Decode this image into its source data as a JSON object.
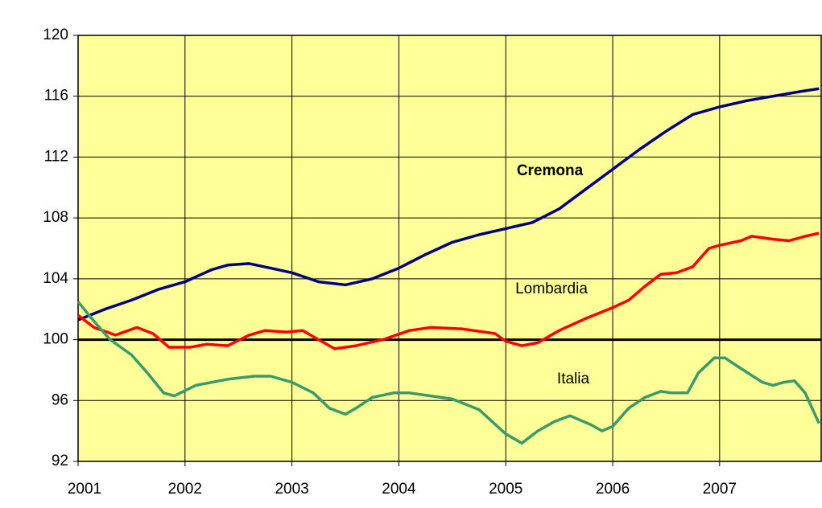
{
  "chart_data": {
    "type": "line",
    "xlim": [
      2001,
      2007.95
    ],
    "xticks": [
      2001,
      2002,
      2003,
      2004,
      2005,
      2006,
      2007
    ],
    "ylim": [
      92,
      120
    ],
    "yticks": [
      92,
      96,
      100,
      104,
      108,
      112,
      116,
      120
    ],
    "grid": true,
    "reference_line": 100,
    "annotations": [
      "Cremona",
      "Lombardia",
      "Italia"
    ],
    "series": [
      {
        "name": "Cremona",
        "color": "#000080",
        "x": [
          2001.0,
          2001.25,
          2001.5,
          2001.75,
          2002.0,
          2002.25,
          2002.4,
          2002.6,
          2002.8,
          2003.0,
          2003.25,
          2003.5,
          2003.75,
          2004.0,
          2004.25,
          2004.5,
          2004.75,
          2005.0,
          2005.25,
          2005.5,
          2005.75,
          2006.0,
          2006.25,
          2006.5,
          2006.75,
          2007.0,
          2007.25,
          2007.5,
          2007.75,
          2007.93
        ],
        "values": [
          101.3,
          102.0,
          102.6,
          103.3,
          103.8,
          104.6,
          104.9,
          105.0,
          104.7,
          104.4,
          103.8,
          103.6,
          104.0,
          104.7,
          105.6,
          106.4,
          106.9,
          107.3,
          107.7,
          108.6,
          109.9,
          111.2,
          112.5,
          113.7,
          114.8,
          115.3,
          115.7,
          116.0,
          116.3,
          116.5
        ]
      },
      {
        "name": "Lombardia",
        "color": "#ff0000",
        "x": [
          2001.0,
          2001.15,
          2001.35,
          2001.55,
          2001.7,
          2001.85,
          2002.05,
          2002.2,
          2002.4,
          2002.6,
          2002.75,
          2002.95,
          2003.1,
          2003.25,
          2003.4,
          2003.6,
          2003.85,
          2004.1,
          2004.3,
          2004.6,
          2004.9,
          2005.0,
          2005.15,
          2005.3,
          2005.5,
          2005.75,
          2006.0,
          2006.15,
          2006.3,
          2006.45,
          2006.6,
          2006.75,
          2006.9,
          2007.0,
          2007.2,
          2007.3,
          2007.5,
          2007.65,
          2007.8,
          2007.93
        ],
        "values": [
          101.6,
          100.8,
          100.3,
          100.8,
          100.4,
          99.5,
          99.5,
          99.7,
          99.6,
          100.3,
          100.6,
          100.5,
          100.6,
          100.0,
          99.4,
          99.6,
          100.0,
          100.6,
          100.8,
          100.7,
          100.4,
          99.9,
          99.6,
          99.8,
          100.6,
          101.4,
          102.1,
          102.6,
          103.5,
          104.3,
          104.4,
          104.8,
          106.0,
          106.2,
          106.5,
          106.8,
          106.6,
          106.5,
          106.8,
          107.0
        ]
      },
      {
        "name": "Italia",
        "color": "#3a9a6a",
        "x": [
          2001.0,
          2001.15,
          2001.3,
          2001.5,
          2001.65,
          2001.8,
          2001.9,
          2002.1,
          2002.4,
          2002.65,
          2002.8,
          2003.0,
          2003.2,
          2003.35,
          2003.5,
          2003.6,
          2003.75,
          2003.95,
          2004.1,
          2004.3,
          2004.5,
          2004.75,
          2005.0,
          2005.15,
          2005.3,
          2005.45,
          2005.6,
          2005.8,
          2005.9,
          2006.0,
          2006.15,
          2006.3,
          2006.45,
          2006.55,
          2006.7,
          2006.8,
          2006.95,
          2007.05,
          2007.2,
          2007.4,
          2007.5,
          2007.6,
          2007.7,
          2007.8,
          2007.93
        ],
        "values": [
          102.5,
          101.2,
          100.0,
          99.0,
          97.8,
          96.5,
          96.3,
          97.0,
          97.4,
          97.6,
          97.6,
          97.2,
          96.5,
          95.5,
          95.1,
          95.5,
          96.2,
          96.5,
          96.5,
          96.3,
          96.1,
          95.4,
          93.8,
          93.2,
          94.0,
          94.6,
          95.0,
          94.4,
          94.0,
          94.3,
          95.5,
          96.2,
          96.6,
          96.5,
          96.5,
          97.8,
          98.8,
          98.8,
          98.1,
          97.2,
          97.0,
          97.2,
          97.3,
          96.5,
          94.5
        ]
      }
    ]
  }
}
